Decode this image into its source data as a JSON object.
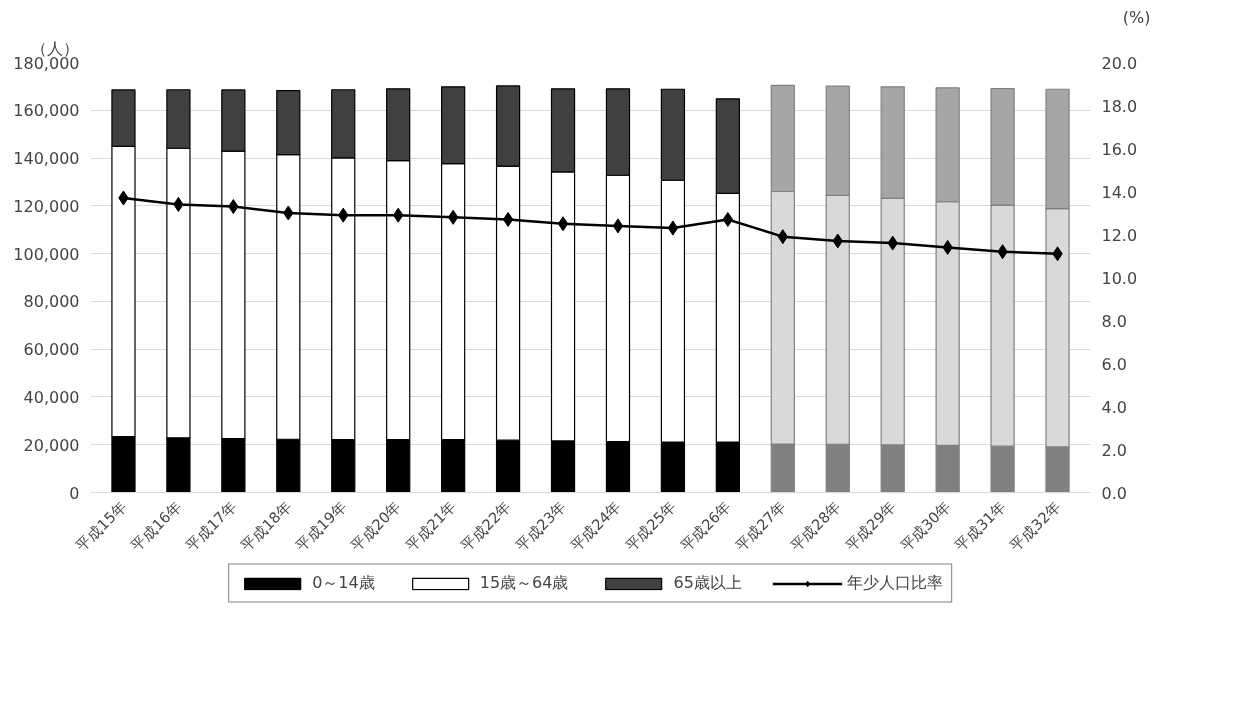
{
  "chart_data": {
    "type": "bar",
    "stacked": true,
    "ylabel": "（人）",
    "y2label": "(%)",
    "categories": [
      "平成15年",
      "平成16年",
      "平成17年",
      "平成18年",
      "平成19年",
      "平成20年",
      "平成21年",
      "平成22年",
      "平成23年",
      "平成24年",
      "平成25年",
      "平成26年",
      "平成27年",
      "平成28年",
      "平成29年",
      "平成30年",
      "平成31年",
      "平成32年"
    ],
    "series": [
      {
        "name": "0～14歳",
        "colors": [
          "#000000",
          "#000000",
          "#000000",
          "#000000",
          "#000000",
          "#000000",
          "#000000",
          "#000000",
          "#000000",
          "#000000",
          "#000000",
          "#000000",
          "#808080",
          "#808080",
          "#808080",
          "#808080",
          "#808080",
          "#808080"
        ],
        "values": [
          23400,
          22900,
          22600,
          22300,
          22100,
          22100,
          22100,
          21900,
          21600,
          21300,
          21100,
          21100,
          20300,
          20200,
          19900,
          19700,
          19400,
          19100
        ]
      },
      {
        "name": "15歳～64歳",
        "colors": [
          "#ffffff",
          "#ffffff",
          "#ffffff",
          "#ffffff",
          "#ffffff",
          "#ffffff",
          "#ffffff",
          "#ffffff",
          "#ffffff",
          "#ffffff",
          "#ffffff",
          "#ffffff",
          "#d9d9d9",
          "#d9d9d9",
          "#d9d9d9",
          "#d9d9d9",
          "#d9d9d9",
          "#d9d9d9"
        ],
        "values": [
          121500,
          121200,
          120300,
          119100,
          118000,
          116800,
          115600,
          114700,
          112600,
          111500,
          109600,
          104100,
          105700,
          104200,
          103300,
          102000,
          100900,
          99700
        ]
      },
      {
        "name": "65歳以上",
        "colors": [
          "#404040",
          "#404040",
          "#404040",
          "#404040",
          "#404040",
          "#404040",
          "#404040",
          "#404040",
          "#404040",
          "#404040",
          "#404040",
          "#404040",
          "#a6a6a6",
          "#a6a6a6",
          "#a6a6a6",
          "#a6a6a6",
          "#a6a6a6",
          "#a6a6a6"
        ],
        "values": [
          23600,
          24500,
          25600,
          26800,
          28500,
          30100,
          32100,
          33600,
          34800,
          36200,
          38100,
          39600,
          44400,
          45700,
          46600,
          47700,
          48800,
          50000
        ]
      },
      {
        "name": "年少人口比率",
        "type": "line",
        "axis": "y2",
        "color": "#000000",
        "marker": "diamond",
        "values": [
          13.7,
          13.4,
          13.3,
          13.0,
          12.9,
          12.9,
          12.8,
          12.7,
          12.5,
          12.4,
          12.3,
          12.7,
          11.9,
          11.7,
          11.6,
          11.4,
          11.2,
          11.1
        ]
      }
    ],
    "ylim": [
      0,
      180000
    ],
    "yticks": [
      {
        "value": 0,
        "label": "0"
      },
      {
        "value": 20000,
        "label": "20,000"
      },
      {
        "value": 40000,
        "label": "40,000"
      },
      {
        "value": 60000,
        "label": "60,000"
      },
      {
        "value": 80000,
        "label": "80,000"
      },
      {
        "value": 100000,
        "label": "100,000"
      },
      {
        "value": 120000,
        "label": "120,000"
      },
      {
        "value": 140000,
        "label": "140,000"
      },
      {
        "value": 160000,
        "label": "160,000"
      },
      {
        "value": 180000,
        "label": "180,000"
      }
    ],
    "y2lim": [
      0,
      20
    ],
    "y2ticks": [
      {
        "value": 0,
        "label": "0.0"
      },
      {
        "value": 2,
        "label": "2.0"
      },
      {
        "value": 4,
        "label": "4.0"
      },
      {
        "value": 6,
        "label": "6.0"
      },
      {
        "value": 8,
        "label": "8.0"
      },
      {
        "value": 10,
        "label": "10.0"
      },
      {
        "value": 12,
        "label": "12.0"
      },
      {
        "value": 14,
        "label": "14.0"
      },
      {
        "value": 16,
        "label": "16.0"
      },
      {
        "value": 18,
        "label": "18.0"
      },
      {
        "value": 20,
        "label": "20.0"
      }
    ],
    "grid": "y",
    "legend": "bottom"
  }
}
